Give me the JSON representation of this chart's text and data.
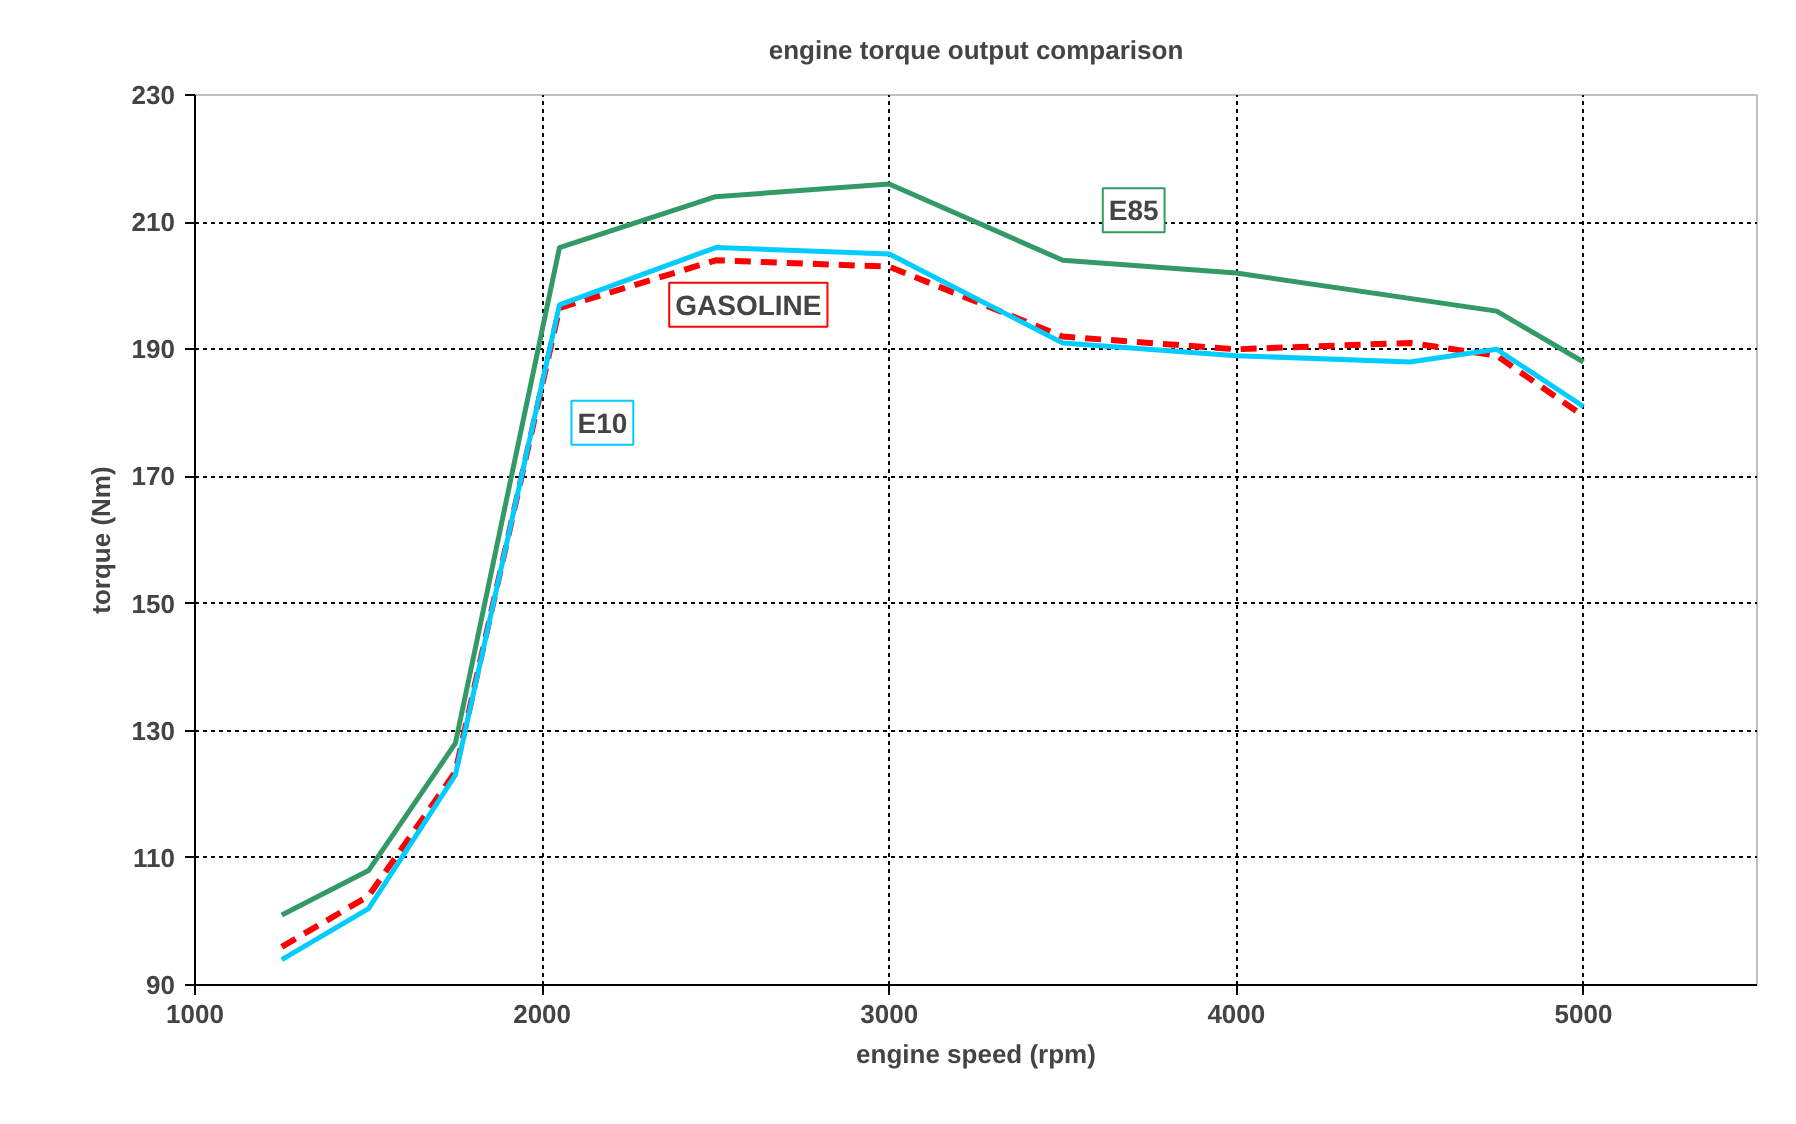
{
  "chart_data": {
    "type": "line",
    "title": "engine torque output comparison",
    "xlabel": "engine speed (rpm)",
    "ylabel": "torque (Nm)",
    "x": [
      1250,
      1500,
      1750,
      2050,
      2500,
      3000,
      3500,
      4000,
      4500,
      4750,
      5000
    ],
    "series": [
      {
        "name": "E85",
        "color": "#339966",
        "line_style": "solid",
        "values": [
          101,
          108,
          128,
          206,
          214,
          216,
          204,
          202,
          null,
          196,
          188
        ]
      },
      {
        "name": "GASOLINE",
        "color": "#ff0000",
        "line_style": "dashed",
        "values": [
          96,
          104,
          123.5,
          196.5,
          204,
          203,
          192,
          190,
          191,
          189,
          179.5
        ]
      },
      {
        "name": "E10",
        "color": "#00ccff",
        "line_style": "solid",
        "values": [
          94,
          102,
          123,
          197,
          206,
          205,
          191,
          189,
          188,
          190,
          181
        ]
      }
    ],
    "xlim": [
      1000,
      5500
    ],
    "xticks": [
      1000,
      2000,
      3000,
      4000,
      5000
    ],
    "ylim": [
      90,
      230
    ],
    "yticks": [
      90,
      110,
      130,
      150,
      170,
      190,
      210,
      230
    ],
    "grid": true,
    "legend": false,
    "marker": "none"
  }
}
